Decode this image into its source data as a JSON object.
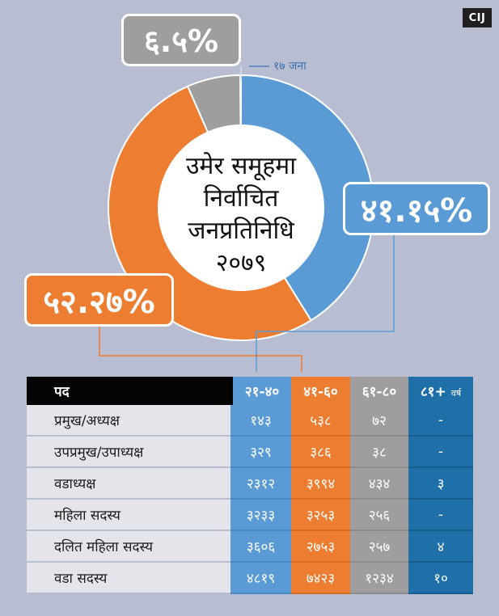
{
  "logo": "CIJ",
  "chart_data": {
    "type": "pie",
    "title_lines": [
      "उमेर समूहमा",
      "निर्वाचित",
      "जनप्रतिनिधि",
      "२०७९"
    ],
    "slices": [
      {
        "value": 41.15,
        "label": "४१.१५%",
        "color": "#5b9bd5"
      },
      {
        "value": 52.27,
        "label": "५२.२७%",
        "color": "#ed7d31"
      },
      {
        "value": 6.5,
        "label": "६.५%",
        "color": "#9e9e9e"
      },
      {
        "value": 0.08,
        "label": "१७ जना",
        "color": "#ffffff"
      }
    ]
  },
  "table": {
    "headers": [
      "पद",
      "२१-४०",
      "४१-६०",
      "६१-८०",
      "८१+",
      "वर्ष"
    ],
    "rows": [
      {
        "role": "प्रमुख/अध्यक्ष",
        "v": [
          "१४३",
          "५३८",
          "७२",
          "-"
        ]
      },
      {
        "role": "उपप्रमुख/उपाध्यक्ष",
        "v": [
          "३२९",
          "३८६",
          "३८",
          "-"
        ]
      },
      {
        "role": "वडाध्यक्ष",
        "v": [
          "२३१२",
          "३९९४",
          "४३४",
          "३"
        ]
      },
      {
        "role": "महिला सदस्य",
        "v": [
          "३२३३",
          "३२५३",
          "२५६",
          "-"
        ]
      },
      {
        "role": "दलित महिला सदस्य",
        "v": [
          "३६०६",
          "२७५३",
          "२५७",
          "४"
        ]
      },
      {
        "role": "वडा सदस्य",
        "v": [
          "४८१९",
          "७४२३",
          "१२३४",
          "१०"
        ]
      }
    ]
  }
}
